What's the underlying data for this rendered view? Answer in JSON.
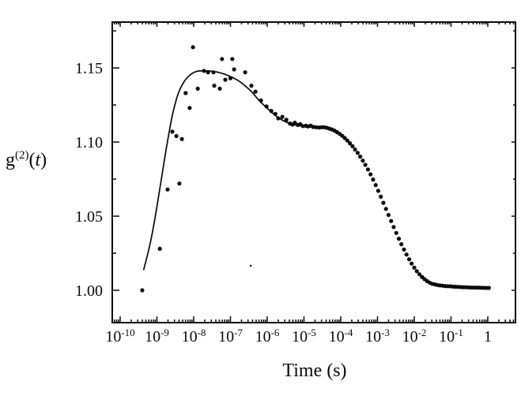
{
  "figure": {
    "background": "#ffffff",
    "ink_color": "#0a0a0a"
  },
  "chart_data": {
    "type": "scatter",
    "title": "",
    "xlabel": "Time (s)",
    "ylabel": "g(2)(t)",
    "ylabel_parts": {
      "base": "g",
      "sup": "(2)",
      "tail_open": "(",
      "tail_arg": "t",
      "tail_close": ")"
    },
    "x_scale": "log10",
    "grid": "off",
    "legend": "none",
    "x_axis_range_log": [
      -10.215,
      0.753
    ],
    "y_axis_range": [
      0.9782,
      1.1809
    ],
    "x_major_ticks_log": [
      -10,
      -9,
      -8,
      -7,
      -6,
      -5,
      -4,
      -3,
      -2,
      -1,
      0
    ],
    "x_minor_tick_mantissas": [
      2,
      3,
      4,
      5,
      6,
      7,
      8,
      9
    ],
    "x_tick_labels": [
      {
        "base": "10",
        "exp": "-10"
      },
      {
        "base": "10",
        "exp": "-9"
      },
      {
        "base": "10",
        "exp": "-8"
      },
      {
        "base": "10",
        "exp": "-7"
      },
      {
        "base": "10",
        "exp": "-6"
      },
      {
        "base": "10",
        "exp": "-5"
      },
      {
        "base": "10",
        "exp": "-4"
      },
      {
        "base": "10",
        "exp": "-3"
      },
      {
        "base": "10",
        "exp": "-2"
      },
      {
        "base": "10",
        "exp": "-1"
      },
      {
        "base": "1",
        "exp": ""
      }
    ],
    "y_major_ticks": [
      1.0,
      1.05,
      1.1,
      1.15
    ],
    "y_tick_labels": [
      "1.00",
      "1.05",
      "1.10",
      "1.15"
    ],
    "y_minor_ticks": [
      1.025,
      1.075,
      1.125,
      1.175
    ],
    "series": [
      {
        "name": "measured-correlation-points",
        "type": "scatter",
        "marker": "filled-circle",
        "color": "#0a0a0a",
        "points_log_x": [
          [
            -9.4,
            1.0
          ],
          [
            -8.92,
            1.028
          ],
          [
            -8.71,
            1.068
          ],
          [
            -8.58,
            1.107
          ],
          [
            -8.47,
            1.104
          ],
          [
            -8.39,
            1.072
          ],
          [
            -8.32,
            1.102
          ],
          [
            -8.22,
            1.133
          ],
          [
            -8.11,
            1.123
          ],
          [
            -8.02,
            1.164
          ],
          [
            -7.89,
            1.136
          ],
          [
            -7.72,
            1.148
          ],
          [
            -7.61,
            1.147
          ],
          [
            -7.46,
            1.147
          ],
          [
            -7.44,
            1.138
          ],
          [
            -7.29,
            1.136
          ],
          [
            -7.23,
            1.156
          ],
          [
            -7.14,
            1.142
          ],
          [
            -7.0,
            1.143
          ],
          [
            -6.95,
            1.156
          ],
          [
            -6.9,
            1.149
          ],
          [
            -6.6,
            1.147
          ],
          [
            -6.43,
            1.138
          ],
          [
            -6.32,
            1.134
          ],
          [
            -6.17,
            1.128
          ],
          [
            -6.02,
            1.124
          ],
          [
            -5.89,
            1.121
          ],
          [
            -5.78,
            1.119
          ],
          [
            -5.7,
            1.116
          ],
          [
            -5.59,
            1.117
          ],
          [
            -5.48,
            1.115
          ],
          [
            -5.38,
            1.1125
          ],
          [
            -5.31,
            1.1118
          ],
          [
            -5.25,
            1.113
          ],
          [
            -5.17,
            1.1115
          ],
          [
            -5.1,
            1.112
          ],
          [
            -5.03,
            1.1108
          ],
          [
            -4.95,
            1.111
          ],
          [
            -4.89,
            1.1105
          ],
          [
            -4.82,
            1.111
          ],
          [
            -4.75,
            1.1102
          ],
          [
            -4.67,
            1.11
          ],
          [
            -4.59,
            1.1098
          ],
          [
            -4.52,
            1.11
          ],
          [
            -4.45,
            1.11
          ],
          [
            -4.38,
            1.1096
          ],
          [
            -4.31,
            1.1091
          ],
          [
            -4.24,
            1.1085
          ],
          [
            -4.17,
            1.1077
          ],
          [
            -4.1,
            1.1067
          ],
          [
            -4.03,
            1.1055
          ],
          [
            -3.96,
            1.1042
          ],
          [
            -3.89,
            1.1027
          ],
          [
            -3.82,
            1.101
          ],
          [
            -3.75,
            1.0992
          ],
          [
            -3.68,
            1.0972
          ],
          [
            -3.61,
            1.095
          ],
          [
            -3.54,
            1.0927
          ],
          [
            -3.47,
            1.0902
          ],
          [
            -3.4,
            1.0875
          ],
          [
            -3.33,
            1.0846
          ],
          [
            -3.26,
            1.0815
          ],
          [
            -3.19,
            1.0782
          ],
          [
            -3.12,
            1.0747
          ],
          [
            -3.05,
            1.071
          ],
          [
            -2.98,
            1.0671
          ],
          [
            -2.91,
            1.0631
          ],
          [
            -2.84,
            1.059
          ],
          [
            -2.77,
            1.0549
          ],
          [
            -2.7,
            1.0508
          ],
          [
            -2.63,
            1.0467
          ],
          [
            -2.56,
            1.0427
          ],
          [
            -2.49,
            1.0387
          ],
          [
            -2.42,
            1.0348
          ],
          [
            -2.35,
            1.0311
          ],
          [
            -2.28,
            1.0275
          ],
          [
            -2.21,
            1.0241
          ],
          [
            -2.14,
            1.0209
          ],
          [
            -2.07,
            1.018
          ],
          [
            -2.0,
            1.0153
          ],
          [
            -1.93,
            1.0129
          ],
          [
            -1.86,
            1.0108
          ],
          [
            -1.79,
            1.009
          ],
          [
            -1.72,
            1.0075
          ],
          [
            -1.65,
            1.0062
          ],
          [
            -1.58,
            1.0052
          ],
          [
            -1.51,
            1.0044
          ],
          [
            -1.44,
            1.004
          ],
          [
            -1.37,
            1.0036
          ],
          [
            -1.3,
            1.0033
          ],
          [
            -1.23,
            1.0031
          ],
          [
            -1.16,
            1.0029
          ],
          [
            -1.09,
            1.0028
          ],
          [
            -1.02,
            1.0027
          ],
          [
            -0.95,
            1.0025
          ],
          [
            -0.88,
            1.0024
          ],
          [
            -0.81,
            1.0023
          ],
          [
            -0.74,
            1.0022
          ],
          [
            -0.67,
            1.0021
          ],
          [
            -0.6,
            1.0021
          ],
          [
            -0.53,
            1.002
          ],
          [
            -0.46,
            1.0019
          ],
          [
            -0.39,
            1.0019
          ],
          [
            -0.32,
            1.0018
          ],
          [
            -0.25,
            1.0018
          ],
          [
            -0.18,
            1.0017
          ],
          [
            -0.11,
            1.0017
          ],
          [
            -0.04,
            1.0016
          ],
          [
            0.03,
            1.0016
          ]
        ]
      },
      {
        "name": "fit-curve",
        "type": "line",
        "color": "#0a0a0a",
        "points_log_x": [
          [
            -9.36,
            1.014
          ],
          [
            -9.18,
            1.032
          ],
          [
            -9.03,
            1.052
          ],
          [
            -8.88,
            1.075
          ],
          [
            -8.73,
            1.098
          ],
          [
            -8.58,
            1.118
          ],
          [
            -8.43,
            1.132
          ],
          [
            -8.28,
            1.14
          ],
          [
            -8.11,
            1.145
          ],
          [
            -7.94,
            1.1475
          ],
          [
            -7.77,
            1.148
          ],
          [
            -7.59,
            1.148
          ],
          [
            -7.42,
            1.1475
          ],
          [
            -7.25,
            1.1465
          ],
          [
            -7.08,
            1.145
          ],
          [
            -6.9,
            1.143
          ],
          [
            -6.73,
            1.1405
          ],
          [
            -6.56,
            1.137
          ],
          [
            -6.39,
            1.133
          ],
          [
            -6.22,
            1.128
          ],
          [
            -6.05,
            1.124
          ],
          [
            -5.88,
            1.12
          ],
          [
            -5.7,
            1.1165
          ],
          [
            -5.53,
            1.114
          ],
          [
            -5.35,
            1.1122
          ],
          [
            -5.18,
            1.1112
          ],
          [
            -5.01,
            1.1107
          ],
          [
            -4.84,
            1.1104
          ],
          [
            -4.67,
            1.1101
          ],
          [
            -4.5,
            1.11
          ]
        ]
      }
    ],
    "small_outlier_point_log_x": [
      -6.45,
      1.0165
    ]
  }
}
